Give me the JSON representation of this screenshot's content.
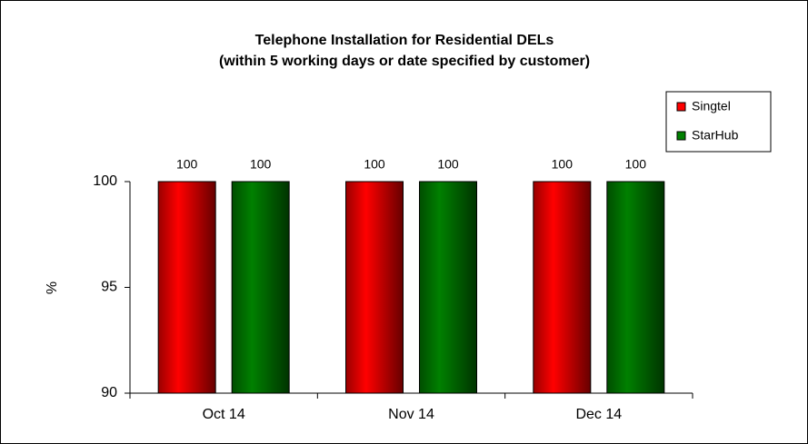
{
  "chart_data": {
    "type": "bar",
    "title": "Telephone Installation for Residential DELs",
    "subtitle": "(within 5 working days or date specified by customer)",
    "ylabel": "%",
    "categories": [
      "Oct 14",
      "Nov 14",
      "Dec 14"
    ],
    "series": [
      {
        "name": "Singtel",
        "color": "#ff0000",
        "values": [
          100,
          100,
          100
        ]
      },
      {
        "name": "StarHub",
        "color": "#008000",
        "values": [
          100,
          100,
          100
        ]
      }
    ],
    "ylim": [
      90,
      100
    ],
    "yticks": [
      90,
      95,
      100
    ],
    "grid": false,
    "legend": "upper right"
  }
}
